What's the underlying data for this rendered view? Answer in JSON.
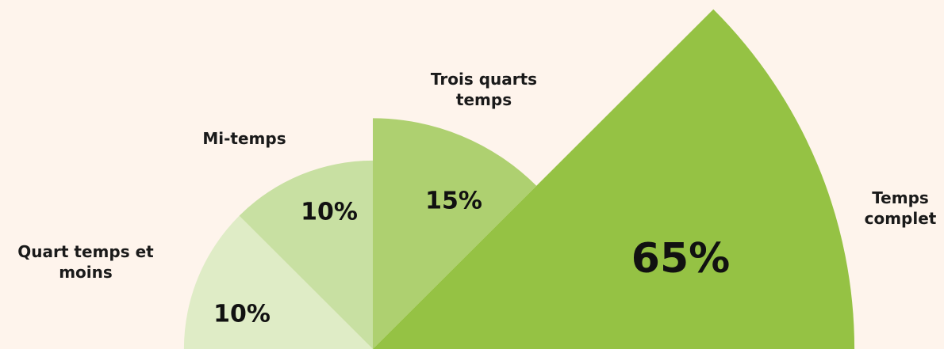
{
  "chart_data": {
    "type": "rose",
    "categories": [
      "Quart temps et moins",
      "Mi-temps",
      "Trois quarts temps",
      "Temps complet"
    ],
    "values": [
      10,
      10,
      15,
      65
    ],
    "value_labels": [
      "10%",
      "10%",
      "15%",
      "65%"
    ],
    "colors": [
      "#dfecc6",
      "#c8e0a2",
      "#aed070",
      "#95c244"
    ]
  }
}
